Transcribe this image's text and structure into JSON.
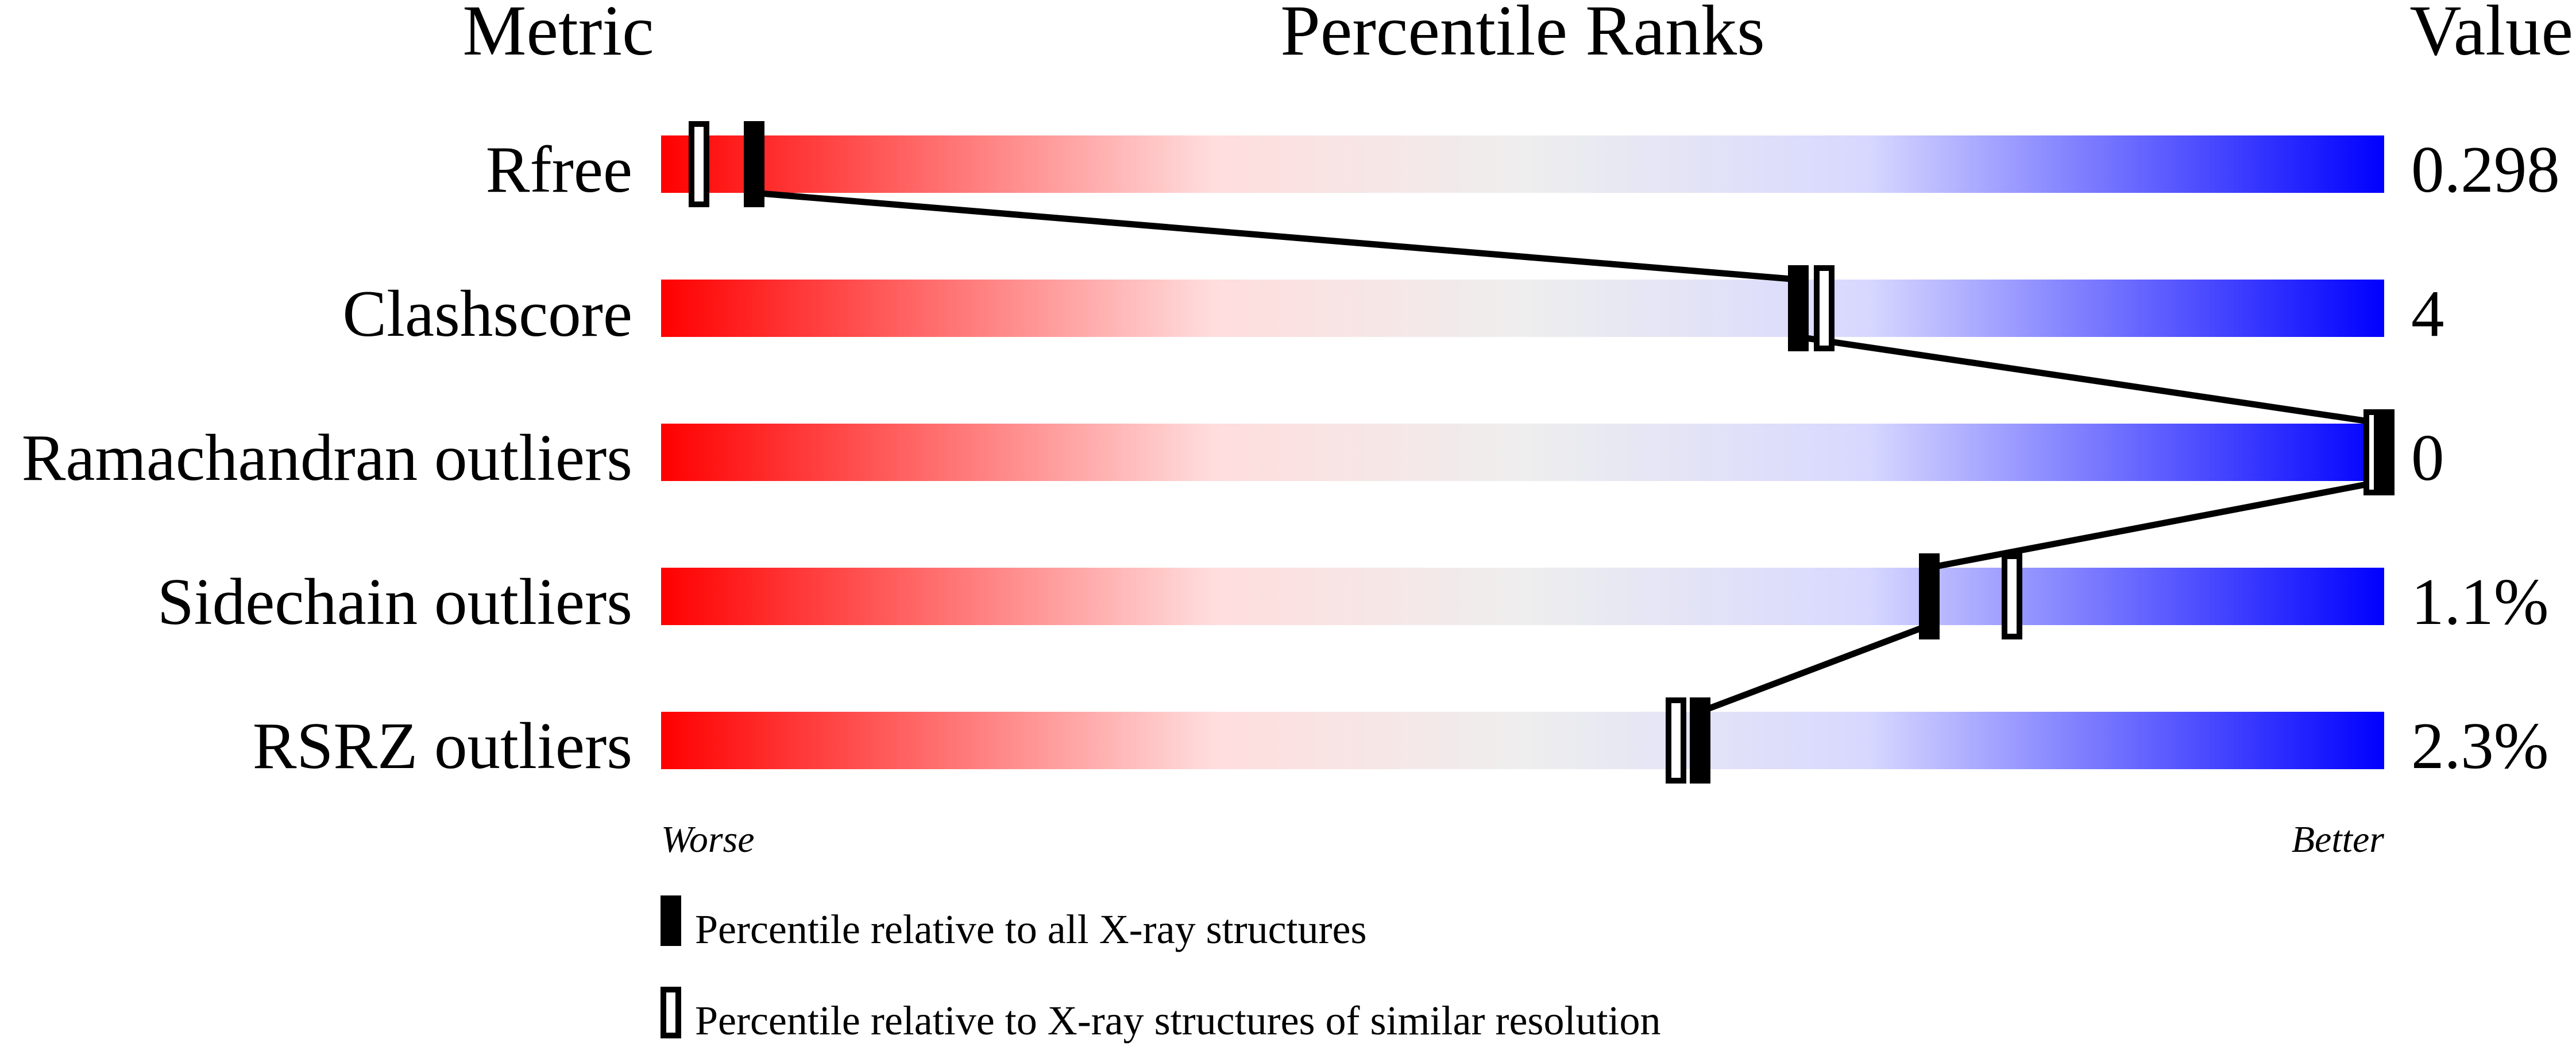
{
  "chart_data": {
    "type": "percentile-slider",
    "headers": {
      "metric": "Metric",
      "ranks": "Percentile Ranks",
      "value": "Value"
    },
    "xlim": [
      0,
      100
    ],
    "axis_labels": {
      "left": "Worse",
      "right": "Better"
    },
    "gradient_colors": [
      "#ff0000",
      "#ffdddd",
      "#eeeeee",
      "#d8d8ff",
      "#0000ff"
    ],
    "rows": [
      {
        "metric": "Rfree",
        "value": "0.298",
        "percentile_all": 5.4,
        "percentile_similar": 2.2
      },
      {
        "metric": "Clashscore",
        "value": "4",
        "percentile_all": 66,
        "percentile_similar": 67.5
      },
      {
        "metric": "Ramachandran outliers",
        "value": "0",
        "percentile_all": 100,
        "percentile_similar": 100
      },
      {
        "metric": "Sidechain outliers",
        "value": "1.1%",
        "percentile_all": 73.6,
        "percentile_similar": 78.4
      },
      {
        "metric": "RSRZ outliers",
        "value": "2.3%",
        "percentile_all": 60.3,
        "percentile_similar": 58.9
      }
    ],
    "legend": [
      {
        "marker": "filled",
        "label": "Percentile relative to all X-ray structures"
      },
      {
        "marker": "open",
        "label": "Percentile relative to X-ray structures of similar resolution"
      }
    ]
  }
}
